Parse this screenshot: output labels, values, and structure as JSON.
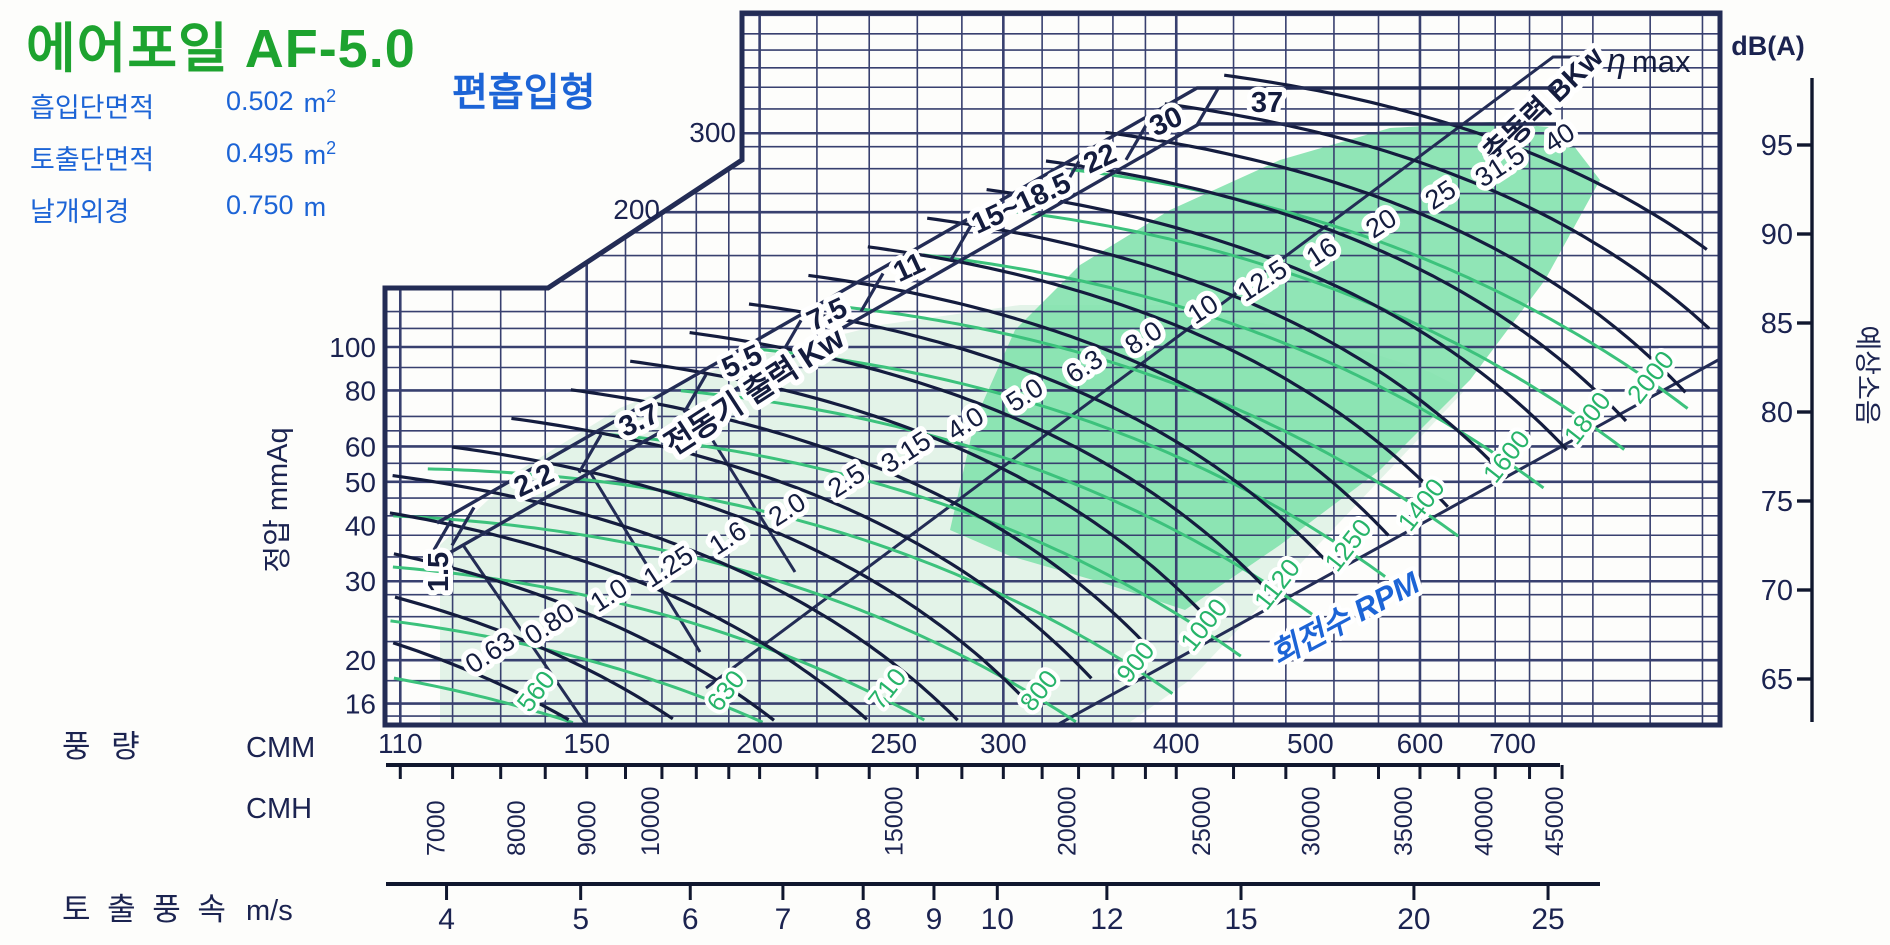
{
  "page": {
    "title": "에어포일 AF-5.0",
    "subtitle": "편흡입형"
  },
  "specs": [
    {
      "label": "흡입단면적",
      "value": "0.502",
      "unit": "m",
      "power": "2"
    },
    {
      "label": "토출단면적",
      "value": "0.495",
      "unit": "m",
      "power": "2"
    },
    {
      "label": "날개외경",
      "value": "0.750",
      "unit": "m",
      "power": ""
    }
  ],
  "colors": {
    "title_green": "#1da32f",
    "spec_blue": "#1c64d6",
    "grid_navy": "#38406f",
    "line_navy": "#232c55",
    "curve_black": "#141c3e",
    "rpm_green": "#3cc27c",
    "rpm_label_green": "#27b46a",
    "shade_light": "#cdebd9",
    "shade_dark": "#7ce0a9"
  },
  "chart_data": {
    "type": "line",
    "description": "Fan performance selection chart (log-log): static pressure (mmAq) vs air flow (CMM/CMH) with constant-RPM fan curves, constant shaft power curves (BKw), motor output selection scale (Kw), maximum-efficiency line and expected noise scale dB(A)",
    "pressure_axis": {
      "label": "정압 mmAq",
      "ticks": [
        16,
        20,
        30,
        40,
        50,
        60,
        80,
        100
      ],
      "upper_ticks": [
        200,
        300
      ]
    },
    "flow_axis": {
      "group_label": "풍 량",
      "cmm": {
        "label": "CMM",
        "ticks": [
          110,
          150,
          200,
          250,
          300,
          400,
          500,
          600,
          700
        ]
      },
      "cmh": {
        "label": "CMH",
        "ticks": [
          7000,
          8000,
          9000,
          10000,
          15000,
          20000,
          25000,
          30000,
          35000,
          40000,
          45000
        ]
      }
    },
    "velocity_axis": {
      "group_label": "토 출 풍 속",
      "label": "m/s",
      "ticks": [
        4,
        5,
        6,
        7,
        8,
        9,
        10,
        12,
        15,
        20,
        25
      ]
    },
    "noise_axis": {
      "title": "dB(A)",
      "label": "예상소음",
      "ticks": [
        65,
        70,
        75,
        80,
        85,
        90,
        95
      ]
    },
    "rpm_curves": {
      "label": "회전수 RPM",
      "values": [
        560,
        630,
        710,
        800,
        900,
        1000,
        1120,
        1250,
        1400,
        1600,
        1800,
        2000
      ]
    },
    "shaft_power_curves": {
      "label": "축동력 BKw",
      "values": [
        "0.63",
        "0.80",
        "1.0",
        "1.25",
        "1.6",
        "2.0",
        "2.5",
        "3.15",
        "4.0",
        "5.0",
        "6.3",
        "8.0",
        "10",
        "12.5",
        "16",
        "20",
        "25",
        "31.5",
        "40"
      ]
    },
    "motor_power_scale": {
      "label": "전동기 출력 Kw",
      "values": [
        "1.5",
        "2.2",
        "3.7",
        "5.5",
        "7.5",
        "11",
        "15~18.5",
        "22",
        "30",
        "37"
      ]
    },
    "max_efficiency_label": "η max"
  }
}
